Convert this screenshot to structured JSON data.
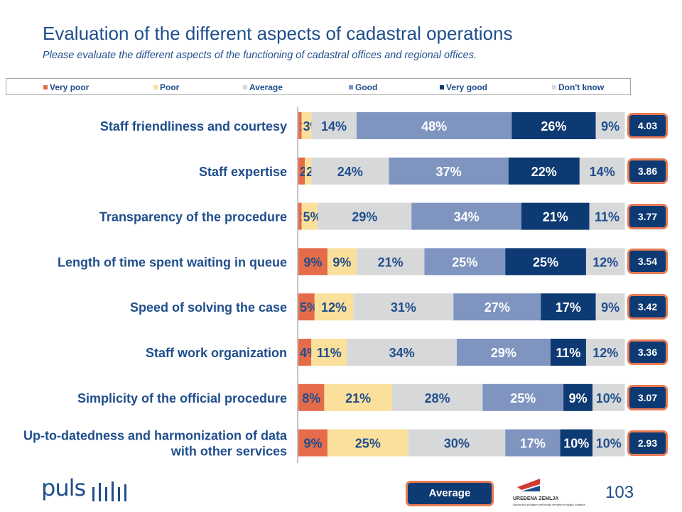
{
  "title": "Evaluation of the different aspects of cadastral operations",
  "subtitle": "Please evaluate the different aspects of the functioning of cadastral offices and regional offices.",
  "legend": [
    {
      "label": "Very poor",
      "color": "#E46C4A"
    },
    {
      "label": "Poor",
      "color": "#FBE09C"
    },
    {
      "label": "Average",
      "color": "#D7D8DA"
    },
    {
      "label": "Good",
      "color": "#7F95C0"
    },
    {
      "label": "Very good",
      "color": "#0D3A73"
    },
    {
      "label": "Don't know",
      "color": "#D7D8DA"
    }
  ],
  "chart_data": {
    "type": "bar",
    "orientation": "horizontal",
    "stacked": true,
    "categories": [
      "Staff friendliness and courtesy",
      "Staff expertise",
      "Transparency of the procedure",
      "Length of time spent waiting in queue",
      "Speed of solving the case",
      "Staff work organization",
      "Simplicity of the official procedure",
      "Up-to-datedness and harmonization of data with other services"
    ],
    "category_lines": [
      [
        "Staff friendliness and courtesy"
      ],
      [
        "Staff expertise"
      ],
      [
        "Transparency of the procedure"
      ],
      [
        "Length of time spent waiting in queue"
      ],
      [
        "Speed of solving the case"
      ],
      [
        "Staff work organization"
      ],
      [
        "Simplicity of the official procedure"
      ],
      [
        "Up-to-datedness and harmonization of data",
        "with other services"
      ]
    ],
    "series": [
      {
        "name": "Very poor",
        "color": "#E46C4A",
        "values": [
          1,
          2,
          1,
          9,
          5,
          4,
          8,
          9
        ]
      },
      {
        "name": "Poor",
        "color": "#FBE09C",
        "values": [
          3,
          2,
          5,
          9,
          12,
          11,
          21,
          25
        ]
      },
      {
        "name": "Average",
        "color": "#D7D8DA",
        "values": [
          14,
          24,
          29,
          21,
          31,
          34,
          28,
          30
        ]
      },
      {
        "name": "Good",
        "color": "#7F95C0",
        "values": [
          48,
          37,
          34,
          25,
          27,
          29,
          25,
          17
        ]
      },
      {
        "name": "Very good",
        "color": "#0D3A73",
        "values": [
          26,
          22,
          21,
          25,
          17,
          11,
          9,
          10
        ]
      },
      {
        "name": "Don't know",
        "color": "#D7D8DA",
        "values": [
          9,
          14,
          11,
          12,
          9,
          12,
          10,
          10
        ]
      }
    ],
    "value_suffix": "%",
    "xlim": [
      0,
      100
    ],
    "averages": [
      "4.03",
      "3.86",
      "3.77",
      "3.54",
      "3.42",
      "3.36",
      "3.07",
      "2.93"
    ]
  },
  "average_legend_label": "Average",
  "page_number": "103",
  "logo_text": "puls",
  "partner_logo_lines": [
    "UREĐENA ZEMLJA",
    "Nacionalni program sređivanja zemljišnih knjiga i katastra"
  ]
}
